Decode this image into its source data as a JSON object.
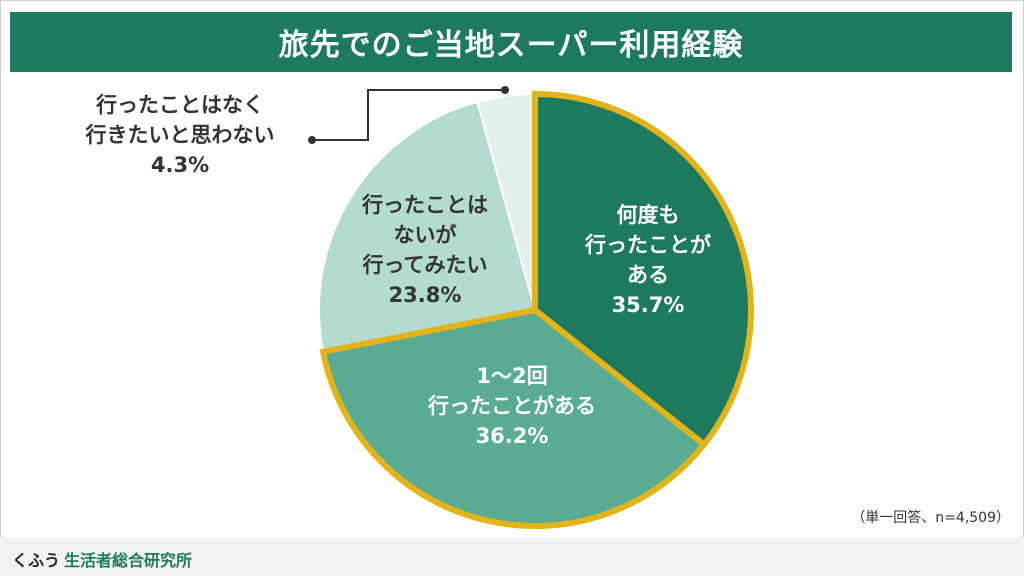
{
  "title": "旅先でのご当地スーパー利用経験",
  "note": "（単一回答、n=4,509）",
  "footer": {
    "brand": "くふう",
    "sub": "生活者総合研究所"
  },
  "colors": {
    "title_bg": "#1e7a5f",
    "slice_dark": "#1e7a5f",
    "slice_mid": "#5aab94",
    "slice_light": "#b3dbcf",
    "slice_pale": "#e2f1ec",
    "highlight_border": "#e2b41a"
  },
  "chart_data": {
    "type": "pie",
    "title": "旅先でのご当地スーパー利用経験",
    "slices": [
      {
        "label_lines": [
          "何度も",
          "行ったことが",
          "ある"
        ],
        "value": 35.7,
        "value_label": "35.7%",
        "highlighted": true
      },
      {
        "label_lines": [
          "1〜2回",
          "行ったことがある"
        ],
        "value": 36.2,
        "value_label": "36.2%",
        "highlighted": true
      },
      {
        "label_lines": [
          "行ったことは",
          "ないが",
          "行ってみたい"
        ],
        "value": 23.8,
        "value_label": "23.8%",
        "highlighted": false
      },
      {
        "label_lines": [
          "行ったことはなく",
          "行きたいと思わない"
        ],
        "value": 4.3,
        "value_label": "4.3%",
        "highlighted": false
      }
    ],
    "start": "12 o'clock",
    "direction": "clockwise",
    "legend": "none"
  }
}
